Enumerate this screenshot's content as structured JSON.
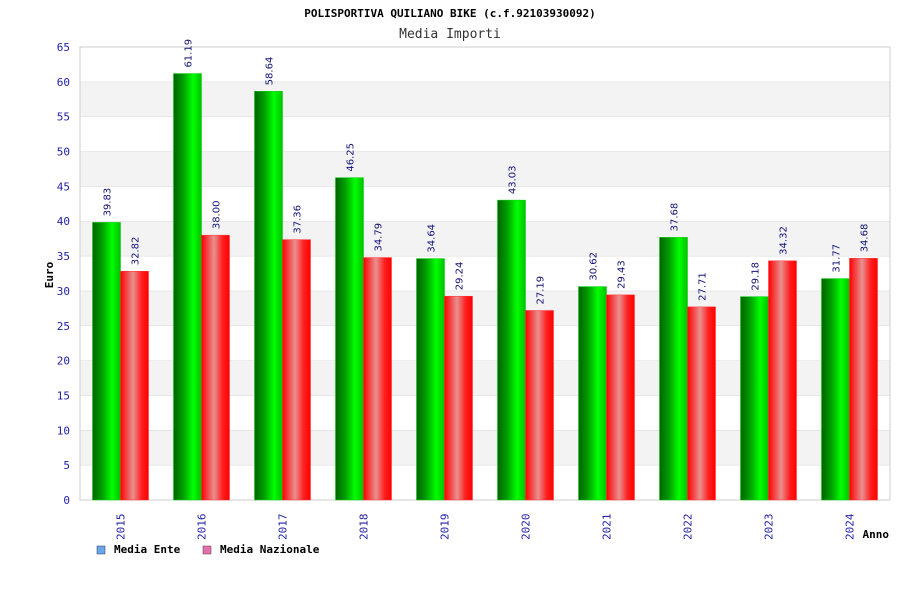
{
  "chart_data": {
    "type": "bar",
    "title": "POLISPORTIVA QUILIANO BIKE (c.f.92103930092)",
    "subtitle": "Media Importi",
    "xlabel": "Anno",
    "ylabel": "Euro",
    "ylim": [
      0,
      65
    ],
    "yticks": [
      "0",
      "5",
      "10",
      "15",
      "20",
      "25",
      "30",
      "35",
      "40",
      "45",
      "50",
      "55",
      "60",
      "65"
    ],
    "grid": true,
    "legend_position": "bottom-left",
    "categories": [
      "2015",
      "2016",
      "2017",
      "2018",
      "2019",
      "2020",
      "2021",
      "2022",
      "2023",
      "2024"
    ],
    "series": [
      {
        "name": "Media Ente",
        "color": "#00b000",
        "legend_color": "#6aa6e8",
        "values": [
          39.83,
          61.19,
          58.64,
          46.25,
          34.64,
          43.03,
          30.62,
          37.68,
          29.18,
          31.77
        ],
        "labels": [
          "39.83",
          "61.19",
          "58.64",
          "46.25",
          "34.64",
          "43.03",
          "30.62",
          "37.68",
          "29.18",
          "31.77"
        ]
      },
      {
        "name": "Media Nazionale",
        "color": "#ff0000",
        "legend_color": "#e070b0",
        "values": [
          32.82,
          38.0,
          37.36,
          34.79,
          29.24,
          27.19,
          29.43,
          27.71,
          34.32,
          34.68
        ],
        "labels": [
          "32.82",
          "38.00",
          "37.36",
          "34.79",
          "29.24",
          "27.19",
          "29.43",
          "27.71",
          "34.32",
          "34.68"
        ]
      }
    ]
  }
}
